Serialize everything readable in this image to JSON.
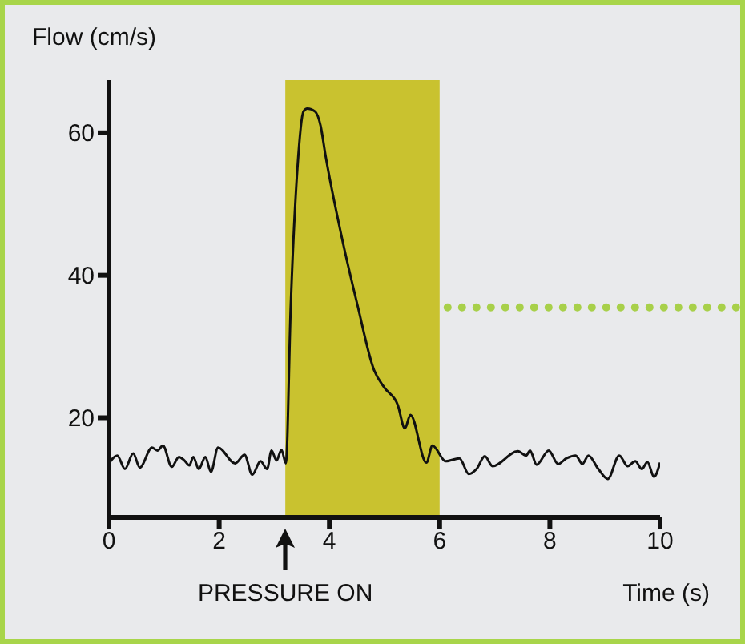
{
  "chart_data": {
    "type": "line",
    "ylabel": "Flow (cm/s)",
    "xlabel": "Time (s)",
    "annotations": [
      "PRESSURE ON"
    ],
    "xlim": [
      0,
      10
    ],
    "xticks": [
      0,
      2,
      4,
      6,
      8,
      10
    ],
    "ylim": [
      6,
      67.4
    ],
    "yticks": [
      20,
      40,
      60
    ],
    "grid": false,
    "legend": false,
    "marker": "none",
    "line_style": "solid",
    "bands": [
      {
        "axis": "x",
        "from": 3.2,
        "to": 6,
        "color": "#c9c22f"
      }
    ],
    "ref_lines": [
      {
        "axis": "y",
        "value": 35.5,
        "color": "#a8d04a",
        "line_style": "dotted"
      }
    ],
    "series": [
      {
        "color": "#111111",
        "x": [
          0,
          0.15,
          0.29,
          0.44,
          0.56,
          0.78,
          0.88,
          0.98,
          1.14,
          1.27,
          1.37,
          1.46,
          1.53,
          1.63,
          1.75,
          1.85,
          1.98,
          2.29,
          2.46,
          2.6,
          2.75,
          2.87,
          2.95,
          3.04,
          3.13,
          3.21,
          3.3,
          3.42,
          3.53,
          3.6,
          3.74,
          3.84,
          3.93,
          4.22,
          4.51,
          4.81,
          5.0,
          5.24,
          5.37,
          5.47,
          5.76,
          5.87,
          6.11,
          6.36,
          6.53,
          6.67,
          6.82,
          6.96,
          7.42,
          7.57,
          7.64,
          7.76,
          7.98,
          8.15,
          8.3,
          8.47,
          8.59,
          8.7,
          8.88,
          9.05,
          9.26,
          9.41,
          9.55,
          9.67,
          9.77,
          9.89,
          10
        ],
        "values": [
          13.6,
          14.7,
          12.8,
          15.0,
          13.0,
          15.8,
          15.4,
          16.1,
          13.1,
          14.5,
          14.0,
          13.3,
          14.5,
          12.8,
          14.5,
          12.4,
          15.8,
          13.6,
          14.8,
          12.0,
          13.9,
          12.8,
          15.4,
          14.0,
          15.5,
          13.6,
          36,
          55,
          63.0,
          63.4,
          63,
          61,
          56.8,
          45.5,
          35.8,
          26.7,
          24.2,
          21.8,
          18.5,
          20.4,
          13.7,
          16.1,
          13.9,
          14.3,
          12.1,
          12.8,
          14.6,
          13.2,
          15.3,
          14.7,
          15.4,
          13.4,
          15.4,
          13.5,
          14.3,
          14.7,
          13.5,
          14.7,
          12.8,
          11.4,
          14.7,
          13.2,
          13.9,
          12.8,
          13.8,
          11.7,
          13.7
        ]
      }
    ]
  }
}
